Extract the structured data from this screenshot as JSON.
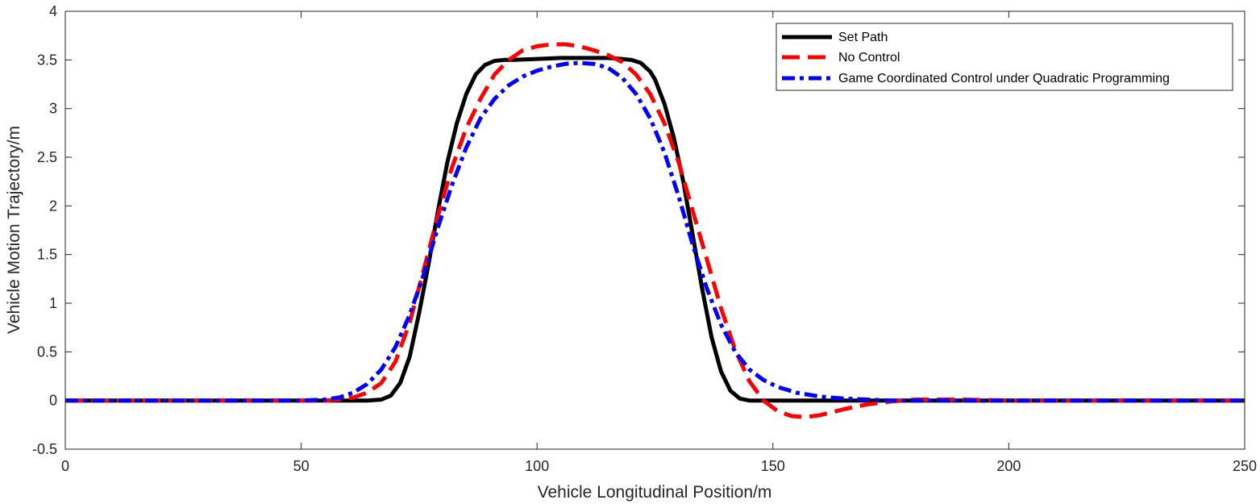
{
  "chart_data": {
    "type": "line",
    "xlabel": "Vehicle Longitudinal Position/m",
    "ylabel": "Vehicle Motion Trajectory/m",
    "xlim": [
      0,
      250
    ],
    "ylim": [
      -0.5,
      4
    ],
    "xticks": [
      0,
      50,
      100,
      150,
      200,
      250
    ],
    "yticks": [
      -0.5,
      0,
      0.5,
      1,
      1.5,
      2,
      2.5,
      3,
      3.5,
      4
    ],
    "grid": false,
    "legend_position": "top-right",
    "series": [
      {
        "name": "Set Path",
        "color": "#000000",
        "style": "solid",
        "x": [
          0,
          10,
          20,
          30,
          40,
          50,
          60,
          64,
          67,
          69,
          71,
          73,
          75,
          77,
          79,
          81,
          83,
          85,
          87,
          89,
          91,
          93,
          95,
          100,
          105,
          110,
          115,
          118,
          120,
          122,
          124,
          125,
          127,
          129,
          131,
          133,
          135,
          137,
          139,
          141,
          143,
          145,
          150,
          160,
          170,
          180,
          190,
          200,
          210,
          220,
          230,
          240,
          250
        ],
        "y": [
          0,
          0,
          0,
          0,
          0,
          0,
          0,
          0,
          0.01,
          0.05,
          0.18,
          0.45,
          0.9,
          1.4,
          1.95,
          2.45,
          2.85,
          3.15,
          3.35,
          3.45,
          3.49,
          3.5,
          3.5,
          3.51,
          3.52,
          3.52,
          3.52,
          3.51,
          3.5,
          3.47,
          3.38,
          3.3,
          3.05,
          2.7,
          2.25,
          1.7,
          1.15,
          0.65,
          0.3,
          0.1,
          0.02,
          0,
          0,
          0,
          0,
          0,
          0,
          0,
          0,
          0,
          0,
          0,
          0
        ]
      },
      {
        "name": "No Control",
        "color": "#ff0000",
        "style": "dashed",
        "x": [
          0,
          10,
          20,
          30,
          40,
          50,
          55,
          58,
          61,
          64,
          67,
          70,
          73,
          76,
          79,
          82,
          85,
          88,
          91,
          94,
          97,
          100,
          103,
          106,
          109,
          112,
          115,
          118,
          121,
          124,
          127,
          130,
          133,
          136,
          139,
          142,
          145,
          148,
          151,
          154,
          157,
          160,
          165,
          170,
          175,
          180,
          185,
          190,
          200,
          210,
          220,
          230,
          240,
          250
        ],
        "y": [
          0,
          0,
          0,
          0,
          0,
          0,
          0,
          0.01,
          0.03,
          0.08,
          0.18,
          0.4,
          0.8,
          1.35,
          1.9,
          2.4,
          2.8,
          3.1,
          3.35,
          3.5,
          3.6,
          3.64,
          3.66,
          3.66,
          3.64,
          3.6,
          3.55,
          3.48,
          3.35,
          3.15,
          2.85,
          2.45,
          1.95,
          1.45,
          0.95,
          0.52,
          0.2,
          0.0,
          -0.11,
          -0.16,
          -0.17,
          -0.15,
          -0.09,
          -0.04,
          -0.01,
          0.01,
          0.01,
          0.01,
          0,
          0,
          0,
          0,
          0,
          0
        ]
      },
      {
        "name": "Game Coordinated Control under Quadratic Programming",
        "color": "#0000ff",
        "style": "dashdot",
        "x": [
          0,
          10,
          20,
          30,
          40,
          50,
          55,
          58,
          61,
          64,
          67,
          70,
          73,
          76,
          79,
          82,
          85,
          88,
          91,
          94,
          97,
          100,
          103,
          106,
          109,
          112,
          115,
          118,
          121,
          124,
          127,
          130,
          133,
          136,
          139,
          142,
          145,
          148,
          151,
          155,
          160,
          165,
          170,
          175,
          180,
          190,
          200,
          210,
          220,
          230,
          240,
          250
        ],
        "y": [
          0,
          0,
          0,
          0,
          0,
          0,
          0.01,
          0.03,
          0.08,
          0.17,
          0.32,
          0.55,
          0.88,
          1.3,
          1.78,
          2.22,
          2.6,
          2.9,
          3.1,
          3.24,
          3.33,
          3.39,
          3.43,
          3.46,
          3.47,
          3.46,
          3.42,
          3.32,
          3.15,
          2.9,
          2.55,
          2.1,
          1.6,
          1.15,
          0.78,
          0.5,
          0.32,
          0.21,
          0.14,
          0.08,
          0.04,
          0.02,
          0.01,
          0,
          0,
          0,
          0,
          0,
          0,
          0,
          0,
          0
        ]
      }
    ]
  }
}
